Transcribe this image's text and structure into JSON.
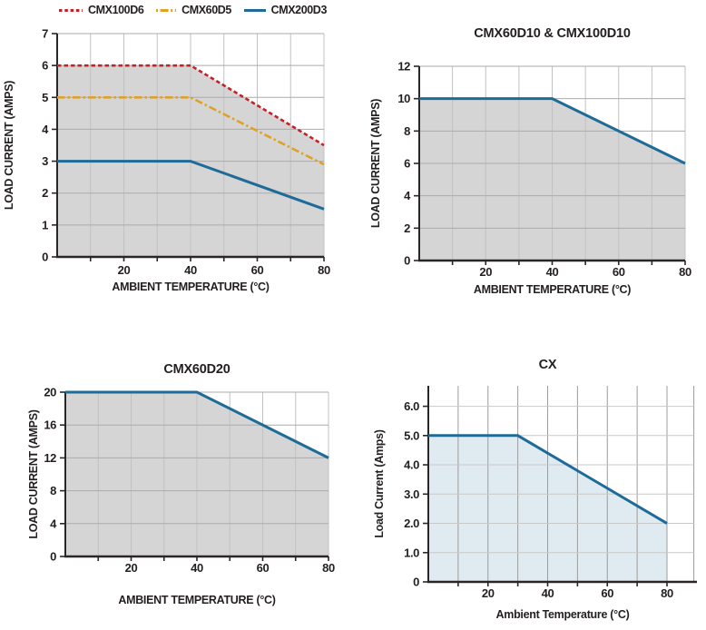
{
  "page": {
    "background": "#ffffff",
    "text_color": "#231f20",
    "axis_color": "#2a2627"
  },
  "colors": {
    "red": "#c42128",
    "orange": "#dfa128",
    "blue": "#1e6b99",
    "gray_fill": "#d5d5d6",
    "light_blue_fill": "#dfeaf1"
  },
  "chart_data": [
    {
      "key": "cmx-low-amp",
      "type": "line",
      "title": "",
      "legend": [
        {
          "label": "CMX100D6",
          "color": "#c42128",
          "style": "dashed"
        },
        {
          "label": "CMX60D5",
          "color": "#dfa128",
          "style": "dashdot"
        },
        {
          "label": "CMX200D3",
          "color": "#1e6b99",
          "style": "solid"
        }
      ],
      "legend_position": "top",
      "xlabel": "AMBIENT TEMPERATURE (°C)",
      "ylabel": "LOAD CURRENT (AMPS)",
      "xlim": [
        0,
        80
      ],
      "ylim": [
        0,
        7
      ],
      "xticks": [
        10,
        20,
        30,
        40,
        50,
        60,
        70,
        80
      ],
      "xtick_labeled": [
        20,
        40,
        60,
        80
      ],
      "yticks": [
        0,
        1,
        2,
        3,
        4,
        5,
        6,
        7
      ],
      "ytick_labels": [
        "0",
        "1",
        "2",
        "3",
        "4",
        "5",
        "6",
        "7"
      ],
      "grid_x": [
        10,
        20,
        30,
        40,
        50,
        60,
        70,
        80
      ],
      "grid_y": [
        1,
        2,
        3,
        4,
        5,
        6,
        7
      ],
      "fill": {
        "under": "CMX100D6",
        "color": "#d5d5d6"
      },
      "series": [
        {
          "name": "CMX100D6",
          "color": "#c42128",
          "style": "dashed",
          "x": [
            0,
            40,
            80
          ],
          "y": [
            6,
            6,
            3.5
          ]
        },
        {
          "name": "CMX60D5",
          "color": "#dfa128",
          "style": "dashdot",
          "x": [
            0,
            40,
            80
          ],
          "y": [
            5,
            5,
            2.9
          ]
        },
        {
          "name": "CMX200D3",
          "color": "#1e6b99",
          "style": "solid",
          "x": [
            0,
            40,
            80
          ],
          "y": [
            3,
            3,
            1.5
          ]
        }
      ]
    },
    {
      "key": "cmx60d10-cmx100d10",
      "type": "line",
      "title": "CMX60D10 & CMX100D10",
      "xlabel": "AMBIENT TEMPERATURE (°C)",
      "ylabel": "LOAD CURRENT (AMPS)",
      "xlim": [
        0,
        80
      ],
      "ylim": [
        0,
        12
      ],
      "xticks": [
        10,
        20,
        30,
        40,
        50,
        60,
        70,
        80
      ],
      "xtick_labeled": [
        20,
        40,
        60,
        80
      ],
      "yticks": [
        0,
        2,
        4,
        6,
        8,
        10,
        12
      ],
      "ytick_labels": [
        "0",
        "2",
        "4",
        "6",
        "8",
        "10",
        "12"
      ],
      "grid_x": [
        10,
        20,
        30,
        40,
        50,
        60,
        70,
        80
      ],
      "grid_y": [
        2,
        4,
        6,
        8,
        10,
        12
      ],
      "fill": {
        "under": "CMX60D10 & CMX100D10",
        "color": "#d5d5d6"
      },
      "series": [
        {
          "name": "CMX60D10 & CMX100D10",
          "color": "#1e6b99",
          "style": "solid",
          "x": [
            0,
            40,
            80
          ],
          "y": [
            10,
            10,
            6
          ]
        }
      ]
    },
    {
      "key": "cmx60d20",
      "type": "line",
      "title": "CMX60D20",
      "xlabel": "AMBIENT TEMPERATURE (°C)",
      "ylabel": "LOAD CURRENT (AMPS)",
      "xlim": [
        0,
        80
      ],
      "ylim": [
        0,
        20
      ],
      "xticks": [
        10,
        20,
        30,
        40,
        50,
        60,
        70,
        80
      ],
      "xtick_labeled": [
        20,
        40,
        60,
        80
      ],
      "yticks": [
        0,
        4,
        8,
        12,
        16,
        20
      ],
      "ytick_labels": [
        "0",
        "4",
        "8",
        "12",
        "16",
        "20"
      ],
      "grid_x": [
        10,
        20,
        30,
        40,
        50,
        60,
        70,
        80
      ],
      "grid_y": [
        4,
        8,
        12,
        16,
        20
      ],
      "fill": {
        "under": "CMX60D20",
        "color": "#d5d5d6"
      },
      "series": [
        {
          "name": "CMX60D20",
          "color": "#1e6b99",
          "style": "solid",
          "x": [
            0,
            40,
            80
          ],
          "y": [
            20,
            20,
            12
          ]
        }
      ]
    },
    {
      "key": "cx",
      "type": "line",
      "title": "CX",
      "xlabel": "Ambient Temperature (°C)",
      "ylabel": "Load Current (Amps)",
      "xlim": [
        0,
        89
      ],
      "ylim": [
        0,
        6.7
      ],
      "xticks": [
        10,
        20,
        30,
        40,
        50,
        60,
        70,
        80
      ],
      "xtick_labeled": [
        20,
        40,
        60,
        80
      ],
      "yticks": [
        0,
        1,
        2,
        3,
        4,
        5,
        6
      ],
      "ytick_labels": [
        "0",
        "1.0",
        "2.0",
        "3.0",
        "4.0",
        "5.0",
        "6.0"
      ],
      "grid_x": [
        10,
        20,
        30,
        40,
        50,
        60,
        70,
        80,
        89
      ],
      "grid_y": [
        1,
        2,
        3,
        4,
        5,
        6
      ],
      "fill": {
        "under": "CX",
        "color": "#dfeaf1"
      },
      "series": [
        {
          "name": "CX",
          "color": "#1e6b99",
          "style": "solid",
          "x": [
            0,
            30,
            80
          ],
          "y": [
            5,
            5,
            2
          ]
        }
      ]
    }
  ]
}
